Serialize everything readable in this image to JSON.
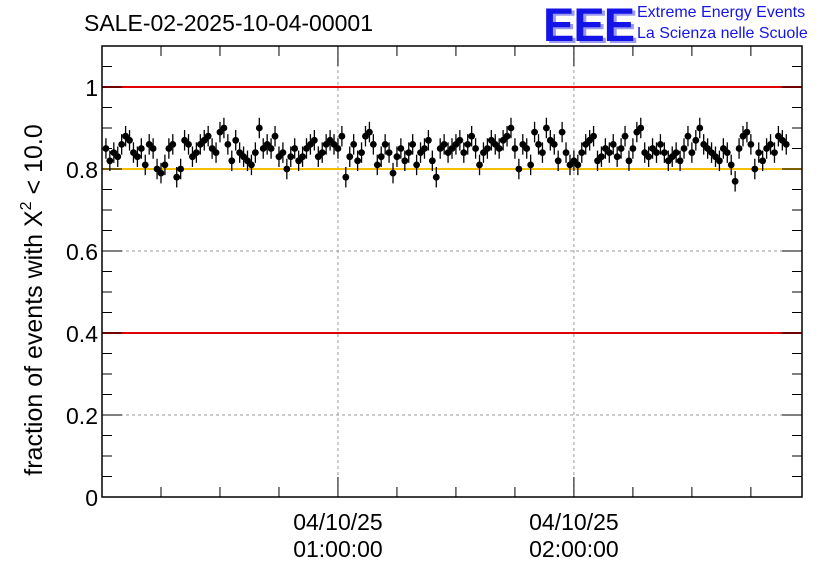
{
  "header": {
    "title": "SALE-02-2025-10-04-00001",
    "logo_text": "EEE",
    "org_line1": "Extreme Energy Events",
    "org_line2": "La Scienza nelle Scuole"
  },
  "colors": {
    "logo": "#1414e6",
    "red_line": "#e00000",
    "yellow_line": "#f5c000",
    "points": "#000000",
    "grid": "#9a9a9a"
  },
  "chart_data": {
    "type": "scatter",
    "title": "SALE-02-2025-10-04-00001",
    "ylabel": "fraction of events with X² < 10.0",
    "ylabel_main": "fraction of events with X",
    "ylabel_sup": "2",
    "ylabel_tail": " < 10.0",
    "xlabel": "",
    "ylim": [
      0,
      1.1
    ],
    "xlim_minutes": [
      0,
      178
    ],
    "yticks": [
      {
        "value": 0,
        "label": "0"
      },
      {
        "value": 0.2,
        "label": "0.2"
      },
      {
        "value": 0.4,
        "label": "0.4"
      },
      {
        "value": 0.6,
        "label": "0.6"
      },
      {
        "value": 0.8,
        "label": "0.8"
      },
      {
        "value": 1.0,
        "label": "1"
      }
    ],
    "xticks": [
      {
        "minute": 60,
        "date": "04/10/25",
        "time": "01:00:00"
      },
      {
        "minute": 120,
        "date": "04/10/25",
        "time": "02:00:00"
      }
    ],
    "x_minor_step_minutes": 15,
    "reference_lines": [
      {
        "y": 1.0,
        "color": "red"
      },
      {
        "y": 0.8,
        "color": "yellow"
      },
      {
        "y": 0.4,
        "color": "red"
      }
    ],
    "grid": true,
    "error_bar_half_height": 0.025,
    "x_start_minute": 1,
    "x_step_minutes": 1,
    "values": [
      0.85,
      0.82,
      0.84,
      0.83,
      0.86,
      0.88,
      0.87,
      0.84,
      0.83,
      0.85,
      0.81,
      0.86,
      0.85,
      0.8,
      0.79,
      0.81,
      0.85,
      0.86,
      0.78,
      0.8,
      0.87,
      0.86,
      0.83,
      0.84,
      0.86,
      0.87,
      0.88,
      0.85,
      0.84,
      0.89,
      0.9,
      0.86,
      0.82,
      0.87,
      0.84,
      0.83,
      0.82,
      0.81,
      0.84,
      0.9,
      0.85,
      0.86,
      0.85,
      0.88,
      0.83,
      0.84,
      0.8,
      0.83,
      0.85,
      0.82,
      0.83,
      0.85,
      0.86,
      0.87,
      0.83,
      0.84,
      0.86,
      0.87,
      0.86,
      0.85,
      0.88,
      0.78,
      0.83,
      0.86,
      0.82,
      0.84,
      0.88,
      0.89,
      0.86,
      0.81,
      0.83,
      0.86,
      0.84,
      0.79,
      0.83,
      0.85,
      0.82,
      0.84,
      0.86,
      0.81,
      0.84,
      0.85,
      0.87,
      0.82,
      0.78,
      0.85,
      0.86,
      0.84,
      0.85,
      0.86,
      0.87,
      0.84,
      0.86,
      0.88,
      0.85,
      0.81,
      0.84,
      0.85,
      0.87,
      0.86,
      0.85,
      0.87,
      0.88,
      0.9,
      0.85,
      0.8,
      0.86,
      0.85,
      0.81,
      0.89,
      0.86,
      0.84,
      0.9,
      0.87,
      0.86,
      0.82,
      0.89,
      0.84,
      0.81,
      0.82,
      0.81,
      0.84,
      0.86,
      0.87,
      0.88,
      0.82,
      0.83,
      0.85,
      0.84,
      0.86,
      0.83,
      0.85,
      0.88,
      0.82,
      0.85,
      0.89,
      0.9,
      0.84,
      0.83,
      0.85,
      0.84,
      0.86,
      0.84,
      0.82,
      0.83,
      0.84,
      0.82,
      0.85,
      0.88,
      0.84,
      0.87,
      0.9,
      0.86,
      0.85,
      0.84,
      0.83,
      0.82,
      0.85,
      0.84,
      0.81,
      0.77,
      0.85,
      0.88,
      0.89,
      0.86,
      0.8,
      0.84,
      0.82,
      0.85,
      0.86,
      0.84,
      0.88,
      0.87,
      0.86
    ]
  }
}
